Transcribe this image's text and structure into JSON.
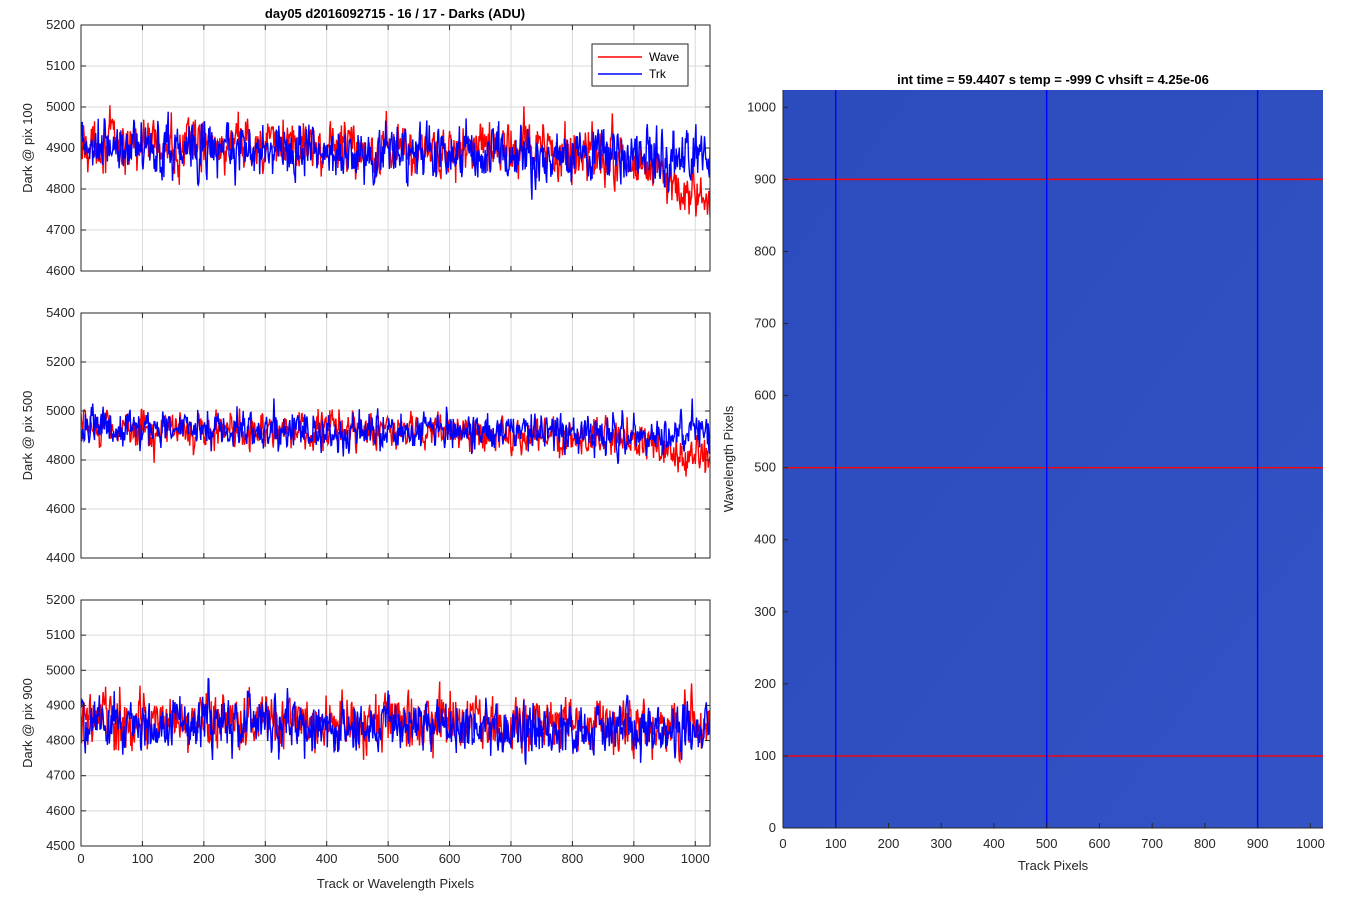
{
  "figure_title": "day05 d2016092715 - 16 / 17 - Darks (ADU)",
  "colors": {
    "wave": "#ff0000",
    "trk": "#0000ff",
    "grid": "#d9d9d9",
    "image_bg": "#2f4fc0"
  },
  "chart_data": [
    {
      "type": "line",
      "title": "day05 d2016092715 - 16 / 17 - Darks (ADU)",
      "xlabel": "",
      "ylabel": "Dark @ pix 100",
      "xlim": [
        0,
        1024
      ],
      "ylim": [
        4600,
        5200
      ],
      "xticks": [
        0,
        100,
        200,
        300,
        400,
        500,
        600,
        700,
        800,
        900,
        1000
      ],
      "xticklabels": [
        "",
        "",
        "",
        "",
        "",
        "",
        "",
        "",
        "",
        "",
        ""
      ],
      "yticks": [
        4600,
        4700,
        4800,
        4900,
        5000,
        5100,
        5200
      ],
      "grid": true,
      "legend": {
        "placement": "top-right",
        "entries": [
          "Wave",
          "Trk"
        ]
      },
      "series": [
        {
          "name": "Wave",
          "color": "#ff0000",
          "mean": 4900,
          "noise": 60,
          "trend": [
            [
              0,
              4910
            ],
            [
              600,
              4900
            ],
            [
              880,
              4880
            ],
            [
              1024,
              4760
            ]
          ]
        },
        {
          "name": "Trk",
          "color": "#0000ff",
          "mean": 4890,
          "noise": 60,
          "trend": [
            [
              0,
              4900
            ],
            [
              1024,
              4880
            ]
          ]
        }
      ]
    },
    {
      "type": "line",
      "title": "",
      "xlabel": "",
      "ylabel": "Dark @ pix 500",
      "xlim": [
        0,
        1024
      ],
      "ylim": [
        4400,
        5400
      ],
      "xticks": [
        0,
        100,
        200,
        300,
        400,
        500,
        600,
        700,
        800,
        900,
        1000
      ],
      "xticklabels": [
        "",
        "",
        "",
        "",
        "",
        "",
        "",
        "",
        "",
        "",
        ""
      ],
      "yticks": [
        4400,
        4600,
        4800,
        5000,
        5200,
        5400
      ],
      "grid": true,
      "series": [
        {
          "name": "Wave",
          "color": "#ff0000",
          "mean": 4920,
          "noise": 70,
          "trend": [
            [
              0,
              4930
            ],
            [
              650,
              4910
            ],
            [
              880,
              4880
            ],
            [
              1024,
              4800
            ]
          ]
        },
        {
          "name": "Trk",
          "color": "#0000ff",
          "mean": 4920,
          "noise": 70,
          "trend": [
            [
              0,
              4930
            ],
            [
              1024,
              4900
            ]
          ]
        }
      ]
    },
    {
      "type": "line",
      "title": "",
      "xlabel": "Track or Wavelength Pixels",
      "ylabel": "Dark @ pix 900",
      "xlim": [
        0,
        1024
      ],
      "ylim": [
        4500,
        5200
      ],
      "xticks": [
        0,
        100,
        200,
        300,
        400,
        500,
        600,
        700,
        800,
        900,
        1000
      ],
      "xticklabels": [
        "0",
        "100",
        "200",
        "300",
        "400",
        "500",
        "600",
        "700",
        "800",
        "900",
        "1000"
      ],
      "yticks": [
        4500,
        4600,
        4700,
        4800,
        4900,
        5000,
        5100,
        5200
      ],
      "grid": true,
      "series": [
        {
          "name": "Wave",
          "color": "#ff0000",
          "mean": 4860,
          "noise": 75,
          "trend": [
            [
              0,
              4860
            ],
            [
              1024,
              4840
            ]
          ]
        },
        {
          "name": "Trk",
          "color": "#0000ff",
          "mean": 4850,
          "noise": 70,
          "trend": [
            [
              0,
              4850
            ],
            [
              1024,
              4830
            ]
          ]
        }
      ]
    },
    {
      "type": "heatmap",
      "title": "int time = 59.4407 s   temp = -999 C   vhsift = 4.25e-06",
      "xlabel": "Track Pixels",
      "ylabel": "Wavelength Pixels",
      "xlim": [
        0,
        1024
      ],
      "ylim": [
        0,
        1024
      ],
      "xticks": [
        0,
        100,
        200,
        300,
        400,
        500,
        600,
        700,
        800,
        900,
        1000
      ],
      "yticks": [
        0,
        100,
        200,
        300,
        400,
        500,
        600,
        700,
        800,
        900,
        1000
      ],
      "grid": false,
      "fill_color": "#2f4fc0",
      "vertical_markers": {
        "positions": [
          100,
          500,
          900
        ],
        "color": "#0000ff"
      },
      "horizontal_markers": {
        "positions": [
          100,
          500,
          900
        ],
        "color": "#ff0000"
      }
    }
  ]
}
